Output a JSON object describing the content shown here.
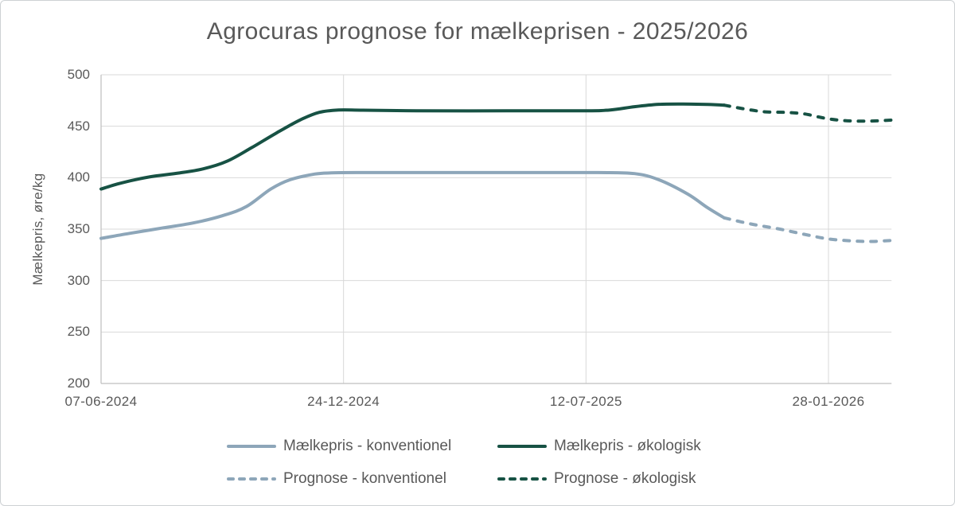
{
  "title": "Agrocuras prognose for mælkeprisen - 2025/2026",
  "colors": {
    "konventionel": "#8DA6B9",
    "oekologisk": "#175244",
    "grid": "#D9D9D9",
    "axis": "#BFBFBF",
    "text": "#595959"
  },
  "y_axis": {
    "title": "Mælkepris, øre/kg",
    "ticks": [
      500,
      450,
      400,
      350,
      300,
      250,
      200
    ]
  },
  "x_axis": {
    "tick_labels": [
      "07-06-2024",
      "24-12-2024",
      "12-07-2025",
      "28-01-2026"
    ],
    "tick_positions": [
      0,
      1,
      2,
      3
    ],
    "t_max": 3.26
  },
  "legend": {
    "rows": [
      [
        {
          "label": "Mælkepris - konventionel",
          "series": "maelkepris_konventionel"
        },
        {
          "label": "Mælkepris - økologisk",
          "series": "maelkepris_oekologisk"
        }
      ],
      [
        {
          "label": "Prognose - konventionel",
          "series": "prognose_konventionel"
        },
        {
          "label": "Prognose - økologisk",
          "series": "prognose_oekologisk"
        }
      ]
    ]
  },
  "chart_data": {
    "type": "line",
    "title": "Agrocuras prognose for mælkeprisen - 2025/2026",
    "xlabel": "",
    "ylabel": "Mælkepris, øre/kg",
    "ylim": [
      200,
      500
    ],
    "grid": "on",
    "legend_position": "bottom",
    "x_tick_labels": [
      "07-06-2024",
      "24-12-2024",
      "12-07-2025",
      "28-01-2026"
    ],
    "x_unit": "tick-index (0 = 07-06-2024, 1 = 24-12-2024, 2 = 12-07-2025, 3 = 28-01-2026)",
    "series": [
      {
        "key": "maelkepris_konventionel",
        "name": "Mælkepris - konventionel",
        "color": "konventionel",
        "dashed": false,
        "points": [
          [
            0,
            341
          ],
          [
            0.12,
            346
          ],
          [
            0.25,
            351
          ],
          [
            0.38,
            356
          ],
          [
            0.5,
            363
          ],
          [
            0.6,
            372
          ],
          [
            0.7,
            389
          ],
          [
            0.78,
            398
          ],
          [
            0.88,
            403.5
          ],
          [
            0.95,
            404.7
          ],
          [
            1.05,
            405
          ],
          [
            1.35,
            405
          ],
          [
            1.7,
            405
          ],
          [
            2.05,
            405
          ],
          [
            2.2,
            404
          ],
          [
            2.3,
            398
          ],
          [
            2.42,
            384
          ],
          [
            2.5,
            371
          ],
          [
            2.57,
            361
          ]
        ]
      },
      {
        "key": "maelkepris_oekologisk",
        "name": "Mælkepris - økologisk",
        "color": "oekologisk",
        "dashed": false,
        "points": [
          [
            0,
            389
          ],
          [
            0.07,
            394
          ],
          [
            0.14,
            398
          ],
          [
            0.22,
            401.5
          ],
          [
            0.32,
            404.5
          ],
          [
            0.42,
            408.5
          ],
          [
            0.52,
            416
          ],
          [
            0.62,
            429
          ],
          [
            0.72,
            443
          ],
          [
            0.82,
            456
          ],
          [
            0.9,
            463.5
          ],
          [
            0.98,
            465.8
          ],
          [
            1.08,
            465.6
          ],
          [
            1.3,
            465
          ],
          [
            1.7,
            465
          ],
          [
            2.0,
            465
          ],
          [
            2.1,
            465.8
          ],
          [
            2.2,
            469
          ],
          [
            2.3,
            471.3
          ],
          [
            2.4,
            471.6
          ],
          [
            2.5,
            471.2
          ],
          [
            2.57,
            470.5
          ]
        ]
      },
      {
        "key": "prognose_konventionel",
        "name": "Prognose - konventionel",
        "color": "konventionel",
        "dashed": true,
        "points": [
          [
            2.57,
            361
          ],
          [
            2.68,
            355
          ],
          [
            2.8,
            350
          ],
          [
            2.9,
            345
          ],
          [
            3.0,
            340.5
          ],
          [
            3.1,
            338.5
          ],
          [
            3.18,
            338
          ],
          [
            3.26,
            339
          ]
        ]
      },
      {
        "key": "prognose_oekologisk",
        "name": "Prognose - økologisk",
        "color": "oekologisk",
        "dashed": true,
        "points": [
          [
            2.57,
            470.5
          ],
          [
            2.66,
            466.5
          ],
          [
            2.74,
            464
          ],
          [
            2.82,
            463.5
          ],
          [
            2.9,
            462
          ],
          [
            2.98,
            458
          ],
          [
            3.05,
            455.8
          ],
          [
            3.12,
            455
          ],
          [
            3.2,
            455.2
          ],
          [
            3.26,
            456
          ]
        ]
      }
    ]
  }
}
